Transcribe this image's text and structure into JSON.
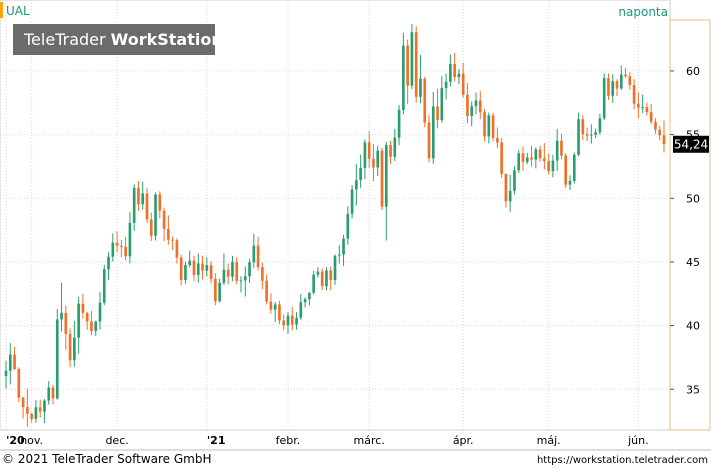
{
  "header": {
    "symbol": "UAL",
    "interval": "naponta",
    "watermark_light": "TeleTrader ",
    "watermark_bold": "WorkStation"
  },
  "footer": {
    "copyright": "© 2021 TeleTrader Software GmbH",
    "url": "https://workstation.teletrader.com"
  },
  "last_price_label": "54,24",
  "colors": {
    "up": "#2a9d6f",
    "down": "#f07028",
    "symbol_bar": "#ffa500",
    "watermark_bg": "#6b6b6b",
    "price_badge": "#000000",
    "axis_frame": "#e8c27a",
    "grid": "#d9d9d9"
  },
  "chart_data": {
    "type": "candlestick",
    "y_axis_side": "right",
    "ylim": [
      31.8,
      64.0
    ],
    "yticks": [
      35,
      40,
      45,
      50,
      55,
      60
    ],
    "grid": true,
    "xtick_labels": [
      {
        "label": "'20",
        "index": 0
      },
      {
        "label": "nov.",
        "index": 6
      },
      {
        "label": "dec.",
        "index": 26
      },
      {
        "label": "'21",
        "index": 47
      },
      {
        "label": "febr.",
        "index": 66
      },
      {
        "label": "márc.",
        "index": 85
      },
      {
        "label": "ápr.",
        "index": 107
      },
      {
        "label": "máj.",
        "index": 127
      },
      {
        "label": "jún.",
        "index": 148
      }
    ],
    "ohlc": [
      [
        36.03,
        37.23,
        35.06,
        36.46
      ],
      [
        36.46,
        38.62,
        35.37,
        37.72
      ],
      [
        37.72,
        38.33,
        36.52,
        36.59
      ],
      [
        36.59,
        36.72,
        33.99,
        34.34
      ],
      [
        34.34,
        34.39,
        32.7,
        33.6
      ],
      [
        33.6,
        35.05,
        32.07,
        33.08
      ],
      [
        33.08,
        33.14,
        32.37,
        32.67
      ],
      [
        32.67,
        34.15,
        32.37,
        33.58
      ],
      [
        33.58,
        34.17,
        32.77,
        33.24
      ],
      [
        33.24,
        34.23,
        32.35,
        34.11
      ],
      [
        34.11,
        35.64,
        33.79,
        35.14
      ],
      [
        35.14,
        35.34,
        33.81,
        34.27
      ],
      [
        34.27,
        41.3,
        34.19,
        40.48
      ],
      [
        40.48,
        43.38,
        39.53,
        41.0
      ],
      [
        41.0,
        41.58,
        38.1,
        39.35
      ],
      [
        39.35,
        39.78,
        36.73,
        37.28
      ],
      [
        37.28,
        40.37,
        36.77,
        39.05
      ],
      [
        39.05,
        42.26,
        37.79,
        41.72
      ],
      [
        41.72,
        42.47,
        40.56,
        41.0
      ],
      [
        41.0,
        41.09,
        39.68,
        40.33
      ],
      [
        40.33,
        41.16,
        39.25,
        39.57
      ],
      [
        39.57,
        40.38,
        39.19,
        40.32
      ],
      [
        40.32,
        42.65,
        39.68,
        41.8
      ],
      [
        41.8,
        44.78,
        41.61,
        44.42
      ],
      [
        44.42,
        45.76,
        43.57,
        45.41
      ],
      [
        45.41,
        47.24,
        45.03,
        46.51
      ],
      [
        46.51,
        47.41,
        45.76,
        46.27
      ],
      [
        46.27,
        46.72,
        45.37,
        46.18
      ],
      [
        46.18,
        46.95,
        45.13,
        45.45
      ],
      [
        45.45,
        48.93,
        44.88,
        48.07
      ],
      [
        48.07,
        51.09,
        47.44,
        50.81
      ],
      [
        50.81,
        51.36,
        49.0,
        49.53
      ],
      [
        49.53,
        51.3,
        49.1,
        50.38
      ],
      [
        50.38,
        50.82,
        48.08,
        48.33
      ],
      [
        48.33,
        48.87,
        46.65,
        47.06
      ],
      [
        47.06,
        50.46,
        46.68,
        50.3
      ],
      [
        50.3,
        50.54,
        48.43,
        49.02
      ],
      [
        49.02,
        49.26,
        46.63,
        47.6
      ],
      [
        47.6,
        48.66,
        46.37,
        46.75
      ],
      [
        46.75,
        47.02,
        45.94,
        46.7
      ],
      [
        46.7,
        46.84,
        44.87,
        45.35
      ],
      [
        45.35,
        45.54,
        43.19,
        43.58
      ],
      [
        43.58,
        45.03,
        43.29,
        44.75
      ],
      [
        44.75,
        45.9,
        44.57,
        45.1
      ],
      [
        45.1,
        45.47,
        43.47,
        43.98
      ],
      [
        43.98,
        45.67,
        43.38,
        44.88
      ],
      [
        44.88,
        45.5,
        43.6,
        44.31
      ],
      [
        44.31,
        45.37,
        43.87,
        44.75
      ],
      [
        44.75,
        45.06,
        43.32,
        43.67
      ],
      [
        43.67,
        44.11,
        41.6,
        41.91
      ],
      [
        41.91,
        43.68,
        41.82,
        43.36
      ],
      [
        43.36,
        45.68,
        43.18,
        44.38
      ],
      [
        44.38,
        44.87,
        43.26,
        43.84
      ],
      [
        43.84,
        45.47,
        43.49,
        44.99
      ],
      [
        44.99,
        45.37,
        43.25,
        43.51
      ],
      [
        43.51,
        43.88,
        42.61,
        43.54
      ],
      [
        43.54,
        44.64,
        42.28,
        43.87
      ],
      [
        43.87,
        45.26,
        43.35,
        44.98
      ],
      [
        44.98,
        47.21,
        44.54,
        46.28
      ],
      [
        46.28,
        46.98,
        44.31,
        44.59
      ],
      [
        44.59,
        44.95,
        42.86,
        43.52
      ],
      [
        43.52,
        44.01,
        41.66,
        41.88
      ],
      [
        41.88,
        42.54,
        40.95,
        41.25
      ],
      [
        41.25,
        41.86,
        40.29,
        41.66
      ],
      [
        41.66,
        41.95,
        40.12,
        40.41
      ],
      [
        40.41,
        40.86,
        39.64,
        40.03
      ],
      [
        40.03,
        41.06,
        39.34,
        40.78
      ],
      [
        40.78,
        41.47,
        39.63,
        40.08
      ],
      [
        40.08,
        41.05,
        39.68,
        40.61
      ],
      [
        40.61,
        42.47,
        40.45,
        41.84
      ],
      [
        41.84,
        42.22,
        41.43,
        42.08
      ],
      [
        42.08,
        42.63,
        41.57,
        42.58
      ],
      [
        42.58,
        44.31,
        42.45,
        43.99
      ],
      [
        43.99,
        44.58,
        43.77,
        44.24
      ],
      [
        44.24,
        44.49,
        42.8,
        43.09
      ],
      [
        43.09,
        44.57,
        42.76,
        44.33
      ],
      [
        44.33,
        44.64,
        42.79,
        43.58
      ],
      [
        43.58,
        45.58,
        43.2,
        45.48
      ],
      [
        45.58,
        46.31,
        44.86,
        45.58
      ],
      [
        45.58,
        47.14,
        44.68,
        46.83
      ],
      [
        46.83,
        49.36,
        46.35,
        48.78
      ],
      [
        48.78,
        51.03,
        48.42,
        50.69
      ],
      [
        50.69,
        52.7,
        49.43,
        51.42
      ],
      [
        51.42,
        53.43,
        50.82,
        52.39
      ],
      [
        52.39,
        54.62,
        51.5,
        54.39
      ],
      [
        54.39,
        55.28,
        52.39,
        53.1
      ],
      [
        53.1,
        54.25,
        51.33,
        52.42
      ],
      [
        52.42,
        54.11,
        51.75,
        53.74
      ],
      [
        53.74,
        53.97,
        49.07,
        49.34
      ],
      [
        49.34,
        54.43,
        46.68,
        54.18
      ],
      [
        54.18,
        54.5,
        52.69,
        53.25
      ],
      [
        53.25,
        55.44,
        52.94,
        54.76
      ],
      [
        54.76,
        57.33,
        54.17,
        56.94
      ],
      [
        56.94,
        63.0,
        56.59,
        61.98
      ],
      [
        61.98,
        62.46,
        57.41,
        58.84
      ],
      [
        58.84,
        63.69,
        58.58,
        63.04
      ],
      [
        63.04,
        63.5,
        57.52,
        57.97
      ],
      [
        57.97,
        61.25,
        57.46,
        59.39
      ],
      [
        59.39,
        59.54,
        55.59,
        55.96
      ],
      [
        55.96,
        56.53,
        52.83,
        53.14
      ],
      [
        53.14,
        58.35,
        52.71,
        57.21
      ],
      [
        57.21,
        58.61,
        55.49,
        56.14
      ],
      [
        56.14,
        59.58,
        55.94,
        58.65
      ],
      [
        58.65,
        59.78,
        57.76,
        59.15
      ],
      [
        59.15,
        61.3,
        58.78,
        60.54
      ],
      [
        60.54,
        61.42,
        59.18,
        59.52
      ],
      [
        59.52,
        60.17,
        58.97,
        59.79
      ],
      [
        59.79,
        60.64,
        57.91,
        58.13
      ],
      [
        58.13,
        59.07,
        55.89,
        56.45
      ],
      [
        56.45,
        57.62,
        55.66,
        57.23
      ],
      [
        57.23,
        58.3,
        56.62,
        57.67
      ],
      [
        57.67,
        58.41,
        56.22,
        56.76
      ],
      [
        56.76,
        57.01,
        54.45,
        54.86
      ],
      [
        54.86,
        56.73,
        54.31,
        56.51
      ],
      [
        56.51,
        56.72,
        54.48,
        54.73
      ],
      [
        54.73,
        55.56,
        53.94,
        54.38
      ],
      [
        54.38,
        54.72,
        51.6,
        51.91
      ],
      [
        51.91,
        51.93,
        49.28,
        49.76
      ],
      [
        49.76,
        51.84,
        48.94,
        50.58
      ],
      [
        50.58,
        52.51,
        50.31,
        52.2
      ],
      [
        52.2,
        53.78,
        51.98,
        53.54
      ],
      [
        53.54,
        54.06,
        52.14,
        52.86
      ],
      [
        52.86,
        53.57,
        52.68,
        53.2
      ],
      [
        53.2,
        54.14,
        52.48,
        53.04
      ],
      [
        53.04,
        53.99,
        52.35,
        53.84
      ],
      [
        53.84,
        54.12,
        52.87,
        53.14
      ],
      [
        53.14,
        54.34,
        52.26,
        52.92
      ],
      [
        52.92,
        53.51,
        51.89,
        52.13
      ],
      [
        52.13,
        53.41,
        51.64,
        52.96
      ],
      [
        52.96,
        55.46,
        52.14,
        54.52
      ],
      [
        54.52,
        55.08,
        53.04,
        53.36
      ],
      [
        53.36,
        53.54,
        50.82,
        51.07
      ],
      [
        51.07,
        51.81,
        50.65,
        51.36
      ],
      [
        51.36,
        53.59,
        51.16,
        53.42
      ],
      [
        53.42,
        56.73,
        53.3,
        56.21
      ],
      [
        56.21,
        56.54,
        54.55,
        55.03
      ],
      [
        55.03,
        55.54,
        54.5,
        54.91
      ],
      [
        54.91,
        55.81,
        54.29,
        54.99
      ],
      [
        54.99,
        55.47,
        54.72,
        55.18
      ],
      [
        55.18,
        56.62,
        54.98,
        56.28
      ],
      [
        56.28,
        59.81,
        56.14,
        59.44
      ],
      [
        59.44,
        59.81,
        57.73,
        58.05
      ],
      [
        58.05,
        59.73,
        57.5,
        59.2
      ],
      [
        59.2,
        59.35,
        58.01,
        58.62
      ],
      [
        58.62,
        60.43,
        58.5,
        59.72
      ],
      [
        59.72,
        60.25,
        59.42,
        59.58
      ],
      [
        59.58,
        59.9,
        58.53,
        58.9
      ],
      [
        58.9,
        59.35,
        56.99,
        57.42
      ],
      [
        57.42,
        58.31,
        56.28,
        57.12
      ],
      [
        57.12,
        58.14,
        56.68,
        57.16
      ],
      [
        57.16,
        57.51,
        56.49,
        56.76
      ],
      [
        56.76,
        57.42,
        55.82,
        56.01
      ],
      [
        56.01,
        56.28,
        55.06,
        55.38
      ],
      [
        55.38,
        55.69,
        54.54,
        54.94
      ],
      [
        54.94,
        56.11,
        53.59,
        54.24
      ]
    ]
  }
}
